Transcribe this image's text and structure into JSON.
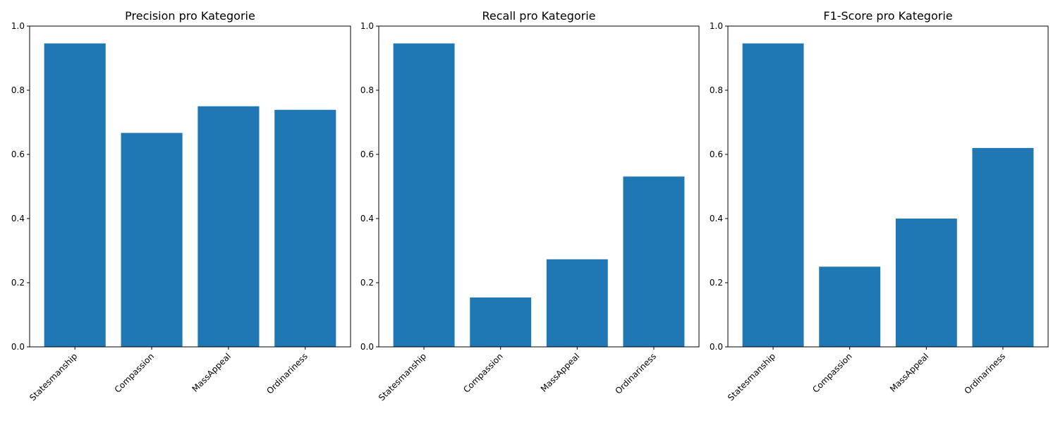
{
  "colors": {
    "bar": "#1f77b4"
  },
  "chart_data": [
    {
      "type": "bar",
      "title": "Precision pro Kategorie",
      "xlabel": "",
      "ylabel": "",
      "categories": [
        "Statesmanship",
        "Compassion",
        "MassAppeal",
        "Ordinariness"
      ],
      "values": [
        0.946,
        0.667,
        0.75,
        0.739
      ],
      "ylim": [
        0,
        1
      ],
      "yticks": [
        "0.0",
        "0.2",
        "0.4",
        "0.6",
        "0.8",
        "1.0"
      ],
      "grid": false
    },
    {
      "type": "bar",
      "title": "Recall pro Kategorie",
      "xlabel": "",
      "ylabel": "",
      "categories": [
        "Statesmanship",
        "Compassion",
        "MassAppeal",
        "Ordinariness"
      ],
      "values": [
        0.946,
        0.154,
        0.273,
        0.531
      ],
      "ylim": [
        0,
        1
      ],
      "yticks": [
        "0.0",
        "0.2",
        "0.4",
        "0.6",
        "0.8",
        "1.0"
      ],
      "grid": false
    },
    {
      "type": "bar",
      "title": "F1-Score pro Kategorie",
      "xlabel": "",
      "ylabel": "",
      "categories": [
        "Statesmanship",
        "Compassion",
        "MassAppeal",
        "Ordinariness"
      ],
      "values": [
        0.946,
        0.25,
        0.4,
        0.62
      ],
      "ylim": [
        0,
        1
      ],
      "yticks": [
        "0.0",
        "0.2",
        "0.4",
        "0.6",
        "0.8",
        "1.0"
      ],
      "grid": false
    }
  ]
}
